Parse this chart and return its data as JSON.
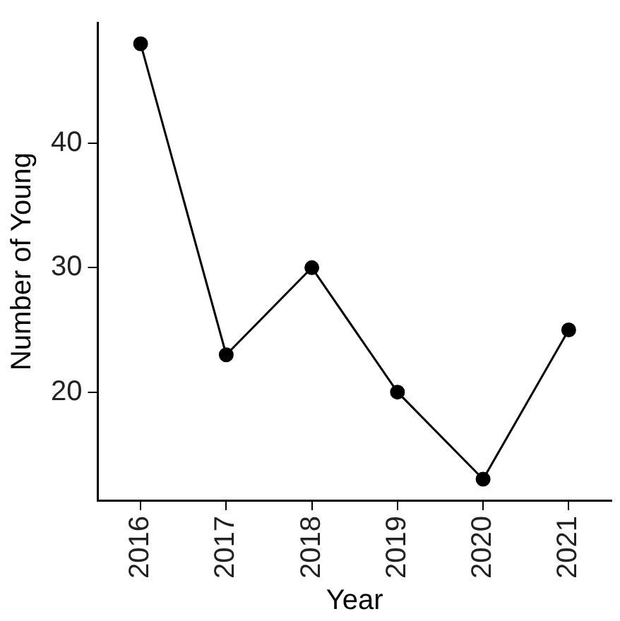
{
  "chart_data": {
    "type": "line",
    "xlabel": "Year",
    "ylabel": "Number of Young",
    "categories": [
      "2016",
      "2017",
      "2018",
      "2019",
      "2020",
      "2021"
    ],
    "series": [
      {
        "color": "#000000",
        "values": [
          48,
          23,
          30,
          20,
          13,
          25
        ]
      }
    ],
    "ylim": [
      11.3,
      49.7
    ],
    "yticks": [
      20,
      30,
      40
    ],
    "grid": false,
    "legend": false,
    "marker": "circle",
    "line_style": "solid"
  }
}
